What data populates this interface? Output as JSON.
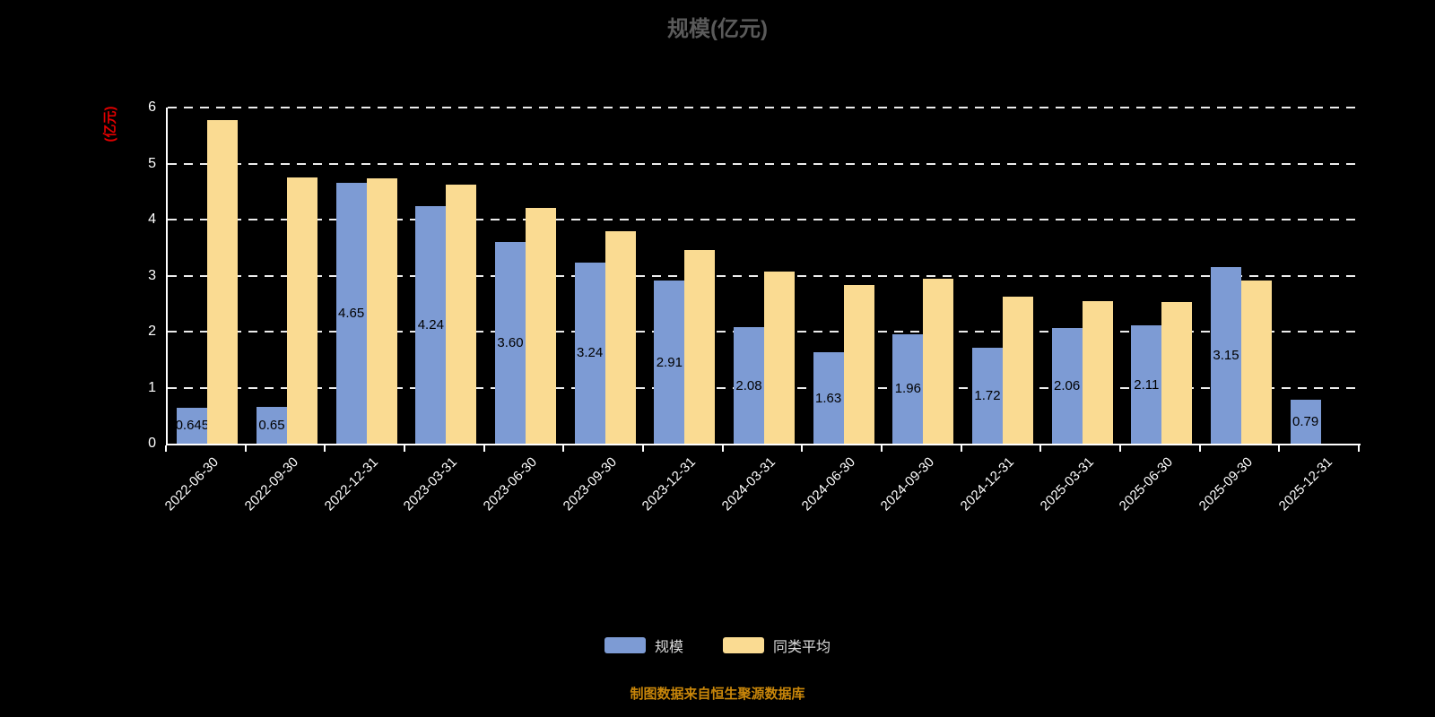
{
  "title": "规模(亿元)",
  "source": "制图数据来自恒生聚源数据库",
  "colors": {
    "background": "#000000",
    "title_text": "#5a5a5a",
    "axis_text": "#ffffff",
    "unit_label": "#e00000",
    "gridline": "#ececec",
    "bar_label": "#000000",
    "source_text": "#c8860a",
    "series_scale": "#7d9bd4",
    "series_average": "#fadb92"
  },
  "chart_data": {
    "type": "bar",
    "title": "规模(亿元)",
    "xlabel": "",
    "ylabel": "(亿元)",
    "ylim": [
      0,
      6
    ],
    "yticks": [
      0,
      1,
      2,
      3,
      4,
      5,
      6
    ],
    "grid": true,
    "legend_position": "bottom",
    "categories": [
      "2022-06-30",
      "2022-09-30",
      "2022-12-31",
      "2023-03-31",
      "2023-06-30",
      "2023-09-30",
      "2023-12-31",
      "2024-03-31",
      "2024-06-30",
      "2024-09-30",
      "2024-12-31",
      "2025-03-31",
      "2025-06-30",
      "2025-09-30",
      "2025-12-31"
    ],
    "series": [
      {
        "name": "规模",
        "color": "#7d9bd4",
        "values": [
          0.645,
          0.65,
          4.65,
          4.24,
          3.6,
          3.24,
          2.91,
          2.08,
          1.63,
          1.96,
          1.72,
          2.06,
          2.11,
          3.15,
          0.79
        ],
        "labels": [
          "0.645",
          "0.65",
          "4.65",
          "4.24",
          "3.60",
          "3.24",
          "2.91",
          "2.08",
          "1.63",
          "1.96",
          "1.72",
          "2.06",
          "2.11",
          "3.15",
          "0.79"
        ]
      },
      {
        "name": "同类平均",
        "color": "#fadb92",
        "values": [
          5.78,
          4.75,
          4.73,
          4.63,
          4.21,
          3.79,
          3.45,
          3.08,
          2.83,
          2.95,
          2.62,
          2.55,
          2.53,
          2.91,
          null
        ],
        "labels": []
      }
    ]
  }
}
